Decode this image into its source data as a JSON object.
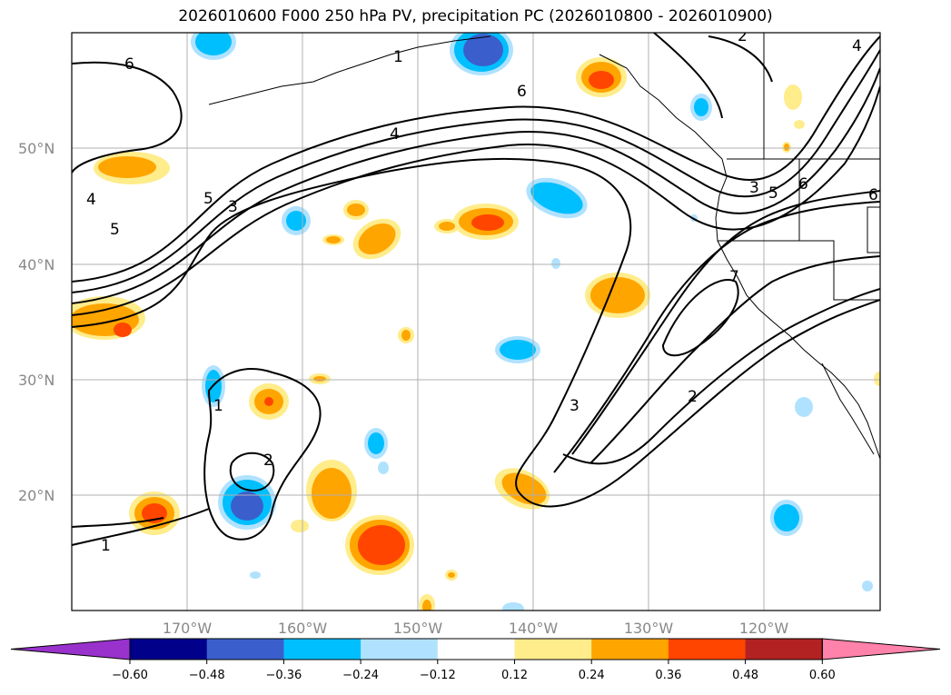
{
  "title": "2026010600 F000 250 hPa PV, precipitation PC (2026010800 - 2026010900)",
  "lat_labels": [
    "50°N",
    "40°N",
    "30°N",
    "20°N"
  ],
  "lon_labels": [
    "170°W",
    "160°W",
    "150°W",
    "140°W",
    "130°W",
    "120°W"
  ],
  "colorbar": {
    "ticks": [
      "−0.60",
      "−0.48",
      "−0.36",
      "−0.24",
      "−0.12",
      "0.12",
      "0.24",
      "0.36",
      "0.48",
      "0.60"
    ],
    "colors": [
      "#9932cc",
      "#00008b",
      "#3a5fcd",
      "#00bfff",
      "#b0e2ff",
      "#ffffff",
      "#ffec8b",
      "#ffa500",
      "#ff4500",
      "#b22222",
      "#ff82ab"
    ]
  },
  "contour_labels": [
    "6",
    "6",
    "4",
    "5",
    "3",
    "5",
    "4",
    "1",
    "2",
    "1",
    "3",
    "3",
    "5",
    "6",
    "7",
    "2",
    "1",
    "2",
    "4",
    "6"
  ],
  "palette": {
    "pos1": "#ffec8b",
    "pos2": "#ffa500",
    "pos3": "#ff4500",
    "neg1": "#b0e2ff",
    "neg2": "#00bfff",
    "neg3": "#3a5fcd"
  }
}
